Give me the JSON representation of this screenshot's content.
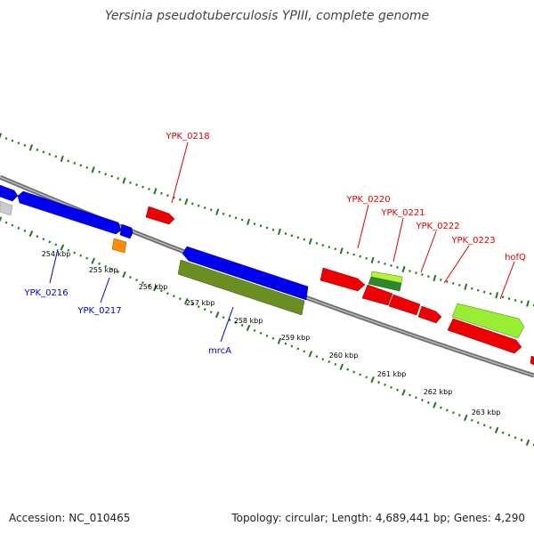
{
  "title": "Yersinia pseudotuberculosis YPIII, complete genome",
  "footer": {
    "accession": "Accession: NC_010465",
    "topology": "Topology: circular; Length: 4,689,441 bp; Genes: 4,290"
  },
  "colors": {
    "backbone": "#808080",
    "tick_green": "#1f7a1f",
    "blue_gene": "#0000ee",
    "red_gene": "#ee0000",
    "olive_gene": "#6b8e23",
    "lime_gene": "#99ee33",
    "orange_gene": "#ff8c00",
    "gray_gene": "#cccccc",
    "blue_label": "#0000cc",
    "red_label": "#dd0000"
  },
  "scale_labels": [
    "254 kbp",
    "255 kbp",
    "256 kbp",
    "257 kbp",
    "258 kbp",
    "259 kbp",
    "260 kbp",
    "261 kbp",
    "262 kbp",
    "263 kbp"
  ],
  "gene_labels": {
    "ypk_0216": "YPK_0216",
    "ypk_0217": "YPK_0217",
    "mrca": "mrcA",
    "ypk_0218": "YPK_0218",
    "ypk_0220": "YPK_0220",
    "ypk_0221": "YPK_0221",
    "ypk_0222": "YPK_0222",
    "ypk_0223": "YPK_0223",
    "hofq": "hofQ"
  }
}
